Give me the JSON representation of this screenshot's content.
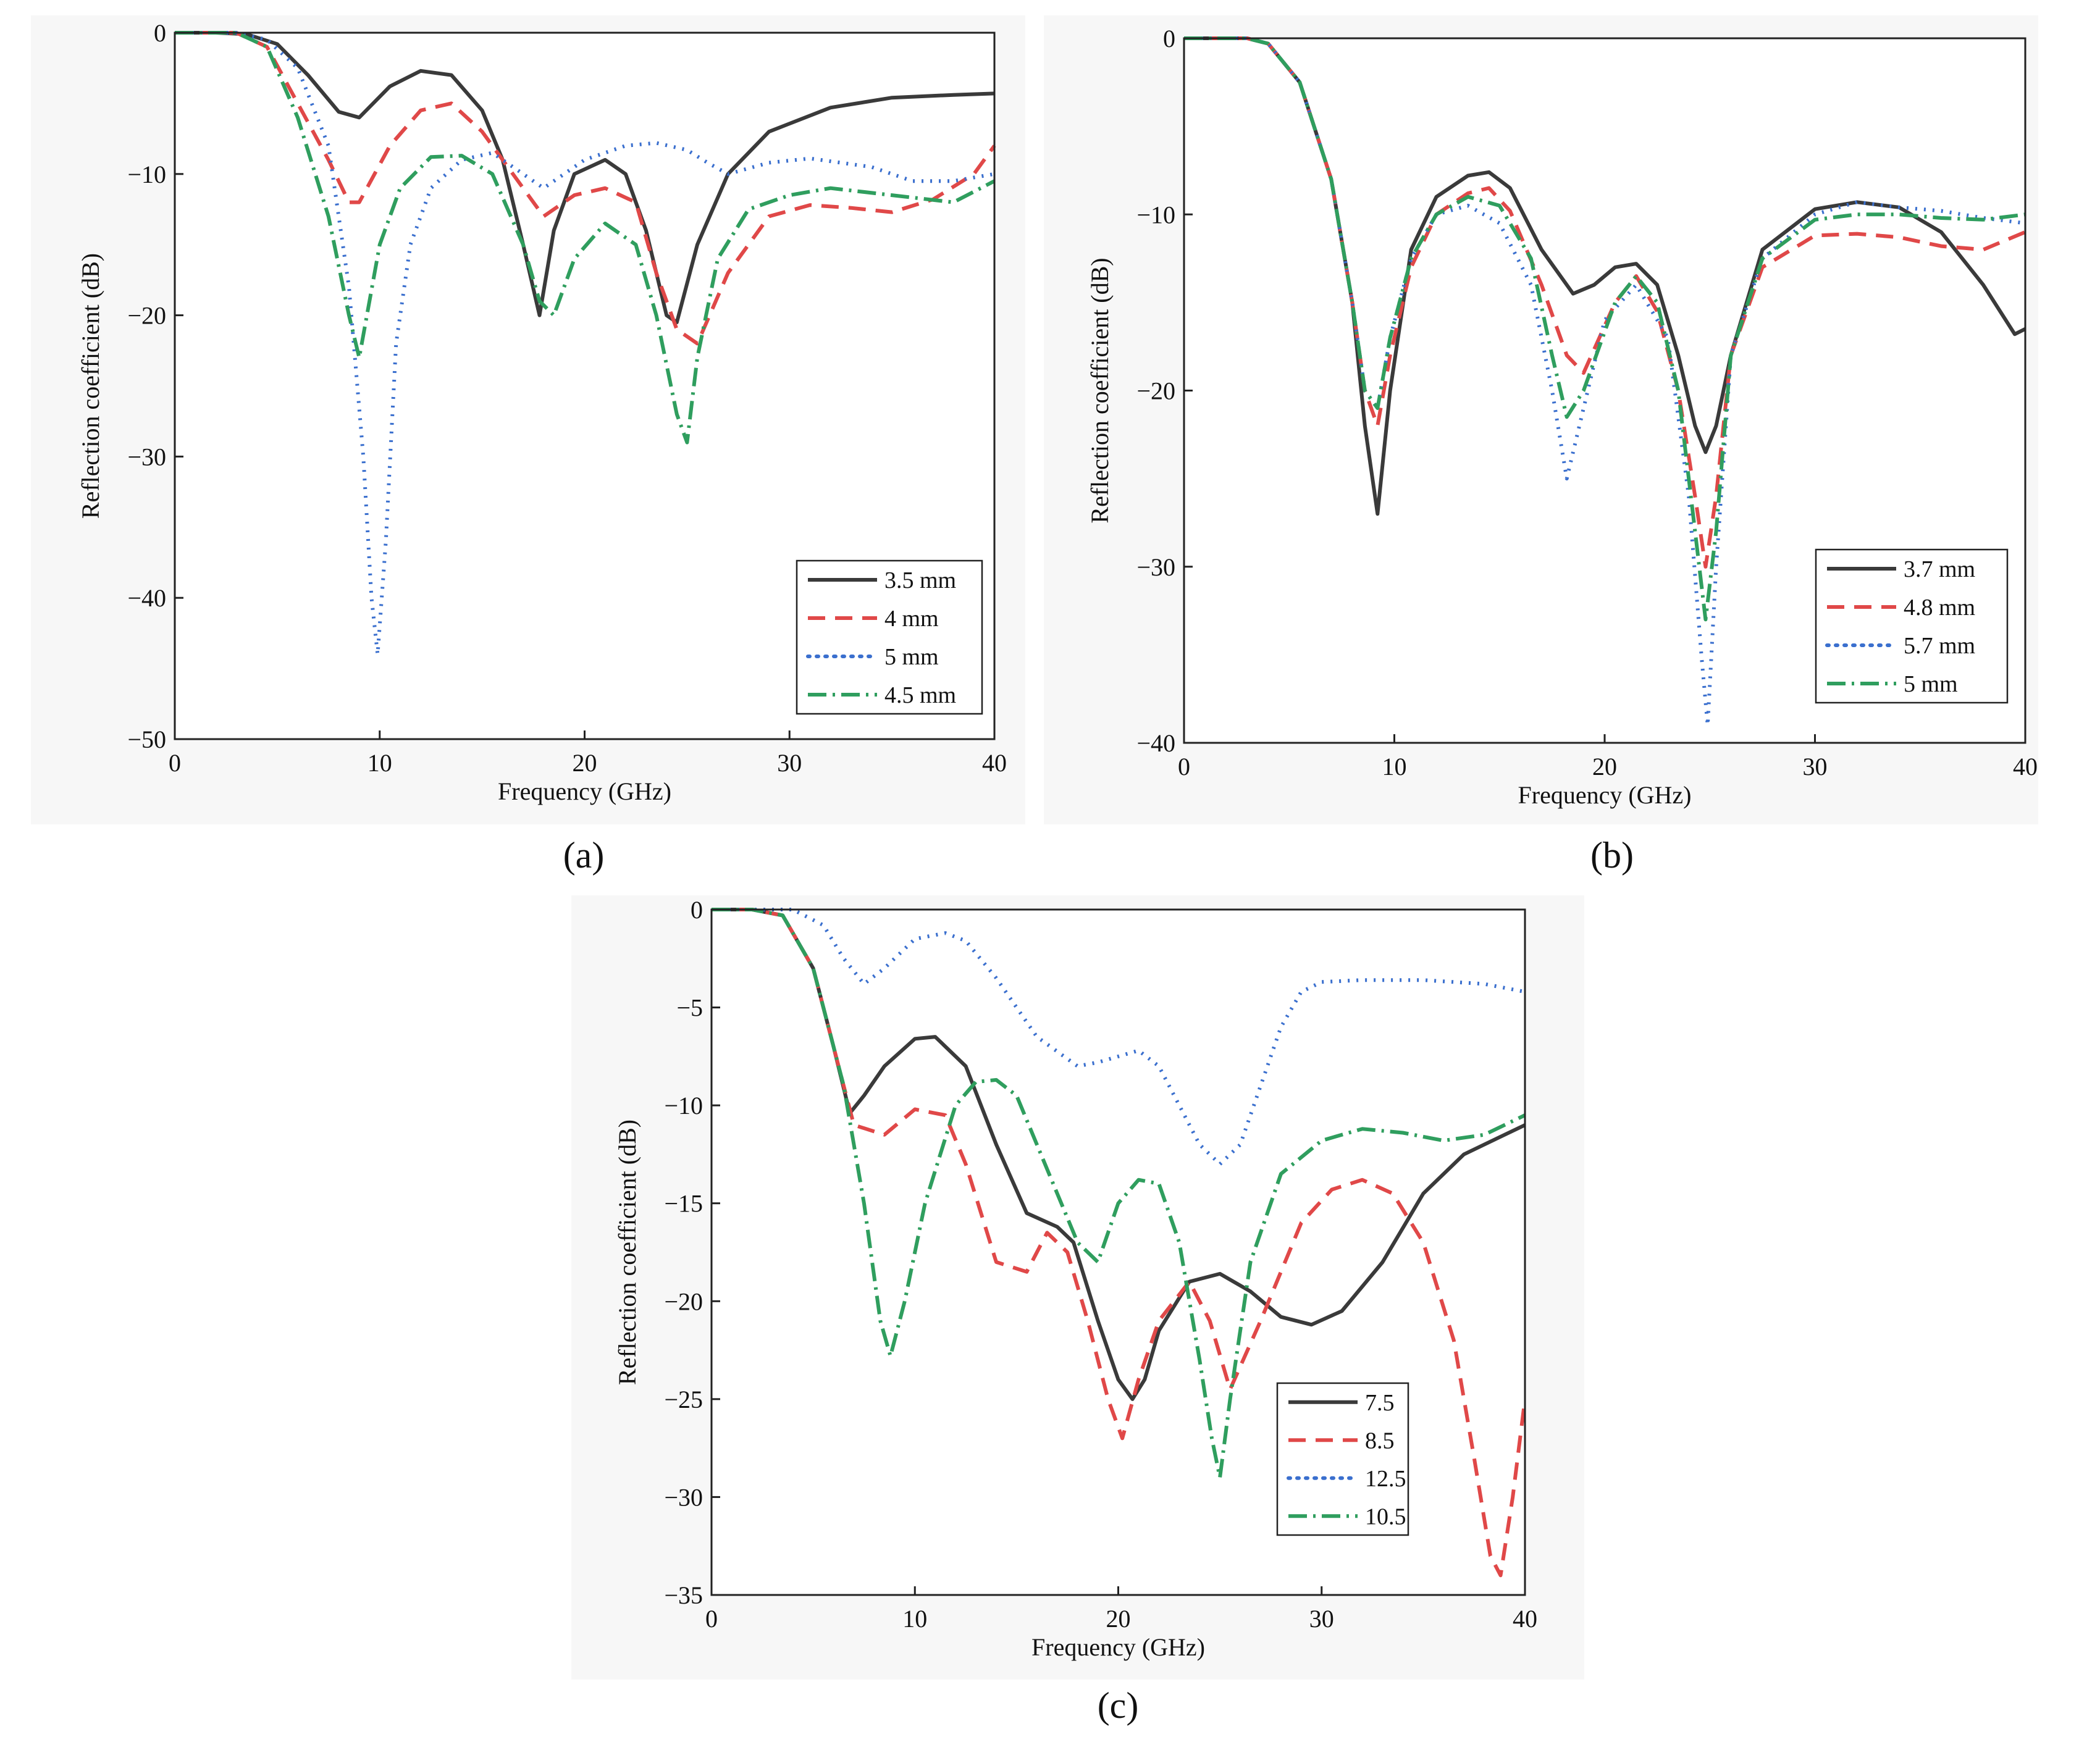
{
  "chart_data": [
    {
      "id": "a",
      "panel_label": "(a)",
      "type": "line",
      "xlabel": "Frequency (GHz)",
      "ylabel": "Reflection coefficient (dB)",
      "xlim": [
        0,
        40
      ],
      "ylim": [
        -50,
        0
      ],
      "xticks": [
        0,
        10,
        20,
        30,
        40
      ],
      "yticks": [
        0,
        -10,
        -20,
        -30,
        -40,
        -50
      ],
      "legend_position": "bottom-right",
      "series": [
        {
          "name": "3.5 mm",
          "color": "#3a3a3a",
          "dash": "solid",
          "x": [
            0,
            2,
            3.5,
            5,
            6.5,
            8,
            9,
            10.5,
            12,
            13.5,
            15,
            16,
            17,
            17.8,
            18.5,
            19.5,
            21,
            22,
            23,
            24,
            24.5,
            25.5,
            27,
            29,
            32,
            35,
            38,
            40
          ],
          "y": [
            0,
            0,
            -0.1,
            -0.8,
            -3,
            -5.6,
            -6,
            -3.8,
            -2.7,
            -3,
            -5.5,
            -9,
            -15,
            -20,
            -14,
            -10,
            -9,
            -10,
            -14,
            -20,
            -20.5,
            -15,
            -10,
            -7,
            -5.3,
            -4.6,
            -4.4,
            -4.3
          ]
        },
        {
          "name": "4 mm",
          "color": "#e04848",
          "dash": "28,16",
          "x": [
            0,
            3,
            4.5,
            6,
            7.5,
            8.5,
            9,
            10.5,
            12,
            13.5,
            15,
            16.5,
            18,
            19.5,
            21,
            22.5,
            23.5,
            24.5,
            25.5,
            27,
            29,
            31,
            33,
            35,
            37,
            39,
            40
          ],
          "y": [
            0,
            0,
            -1,
            -5,
            -9,
            -12,
            -12,
            -8,
            -5.5,
            -5,
            -7,
            -10,
            -13,
            -11.5,
            -11,
            -12,
            -17,
            -21,
            -22,
            -17,
            -13,
            -12.2,
            -12.4,
            -12.7,
            -11.8,
            -10,
            -8
          ]
        },
        {
          "name": "5 mm",
          "color": "#3a6fce",
          "dash": "3,11",
          "x": [
            0,
            3,
            4.5,
            6,
            7.5,
            8.5,
            9.2,
            9.6,
            9.9,
            10.3,
            10.8,
            11.5,
            12.5,
            14,
            15.5,
            17,
            18,
            20,
            22,
            23.5,
            25,
            26,
            27,
            29,
            31,
            34,
            36,
            38,
            40
          ],
          "y": [
            0,
            0,
            -0.5,
            -2.5,
            -8,
            -18,
            -30,
            -40,
            -44,
            -36,
            -22,
            -15,
            -11,
            -9,
            -8.5,
            -10,
            -11,
            -9,
            -8,
            -7.8,
            -8.3,
            -9.2,
            -10,
            -9.2,
            -8.9,
            -9.5,
            -10.5,
            -10.5,
            -10
          ]
        },
        {
          "name": "4.5 mm",
          "color": "#2f9e5e",
          "dash": "30,10,4,10",
          "x": [
            0,
            3,
            4.5,
            6,
            7.5,
            8.5,
            9,
            10,
            11,
            12.5,
            14,
            15.5,
            17,
            17.8,
            18.5,
            19.5,
            21,
            22.5,
            23.5,
            24.5,
            25,
            25.5,
            26.5,
            28,
            30,
            32,
            35,
            38,
            40
          ],
          "y": [
            0,
            0,
            -1,
            -6,
            -13,
            -20,
            -23,
            -15,
            -11,
            -8.8,
            -8.7,
            -10,
            -15,
            -19,
            -20,
            -16,
            -13.5,
            -15,
            -20,
            -27,
            -29,
            -23,
            -16,
            -12.5,
            -11.5,
            -11,
            -11.5,
            -12,
            -10.5
          ]
        }
      ]
    },
    {
      "id": "b",
      "panel_label": "(b)",
      "type": "line",
      "xlabel": "Frequency (GHz)",
      "ylabel": "Reflection coefficient (dB)",
      "xlim": [
        0,
        40
      ],
      "ylim": [
        -40,
        0
      ],
      "xticks": [
        0,
        10,
        20,
        30,
        40
      ],
      "yticks": [
        0,
        -10,
        -20,
        -30,
        -40
      ],
      "legend_position": "bottom-right",
      "series": [
        {
          "name": "3.7 mm",
          "color": "#3a3a3a",
          "dash": "solid",
          "x": [
            0,
            3,
            4,
            5.5,
            7,
            8,
            8.6,
            9.2,
            9.8,
            10.8,
            12,
            13.5,
            14.5,
            15.5,
            17,
            18.5,
            19.5,
            20.5,
            21.5,
            22.5,
            23.5,
            24.3,
            24.8,
            25.3,
            26,
            27.5,
            30,
            32,
            34,
            36,
            38,
            39.5,
            40
          ],
          "y": [
            0,
            0,
            -0.3,
            -2.5,
            -8,
            -15,
            -22,
            -27,
            -20,
            -12,
            -9,
            -7.8,
            -7.6,
            -8.5,
            -12,
            -14.5,
            -14,
            -13,
            -12.8,
            -14,
            -18,
            -22,
            -23.5,
            -22,
            -18,
            -12,
            -9.7,
            -9.3,
            -9.6,
            -11,
            -14,
            -16.8,
            -16.5
          ]
        },
        {
          "name": "4.8 mm",
          "color": "#e04848",
          "dash": "28,16",
          "x": [
            0,
            3,
            4,
            5.5,
            7,
            8,
            8.6,
            9.2,
            9.8,
            10.8,
            12,
            13.5,
            14.5,
            15.5,
            17,
            18.2,
            19,
            20.5,
            21.5,
            22.5,
            23.5,
            24.3,
            24.8,
            25.3,
            26,
            27.5,
            30,
            32,
            34,
            36,
            38,
            40
          ],
          "y": [
            0,
            0,
            -0.3,
            -2.5,
            -8,
            -15,
            -20,
            -22,
            -18,
            -13,
            -10,
            -8.8,
            -8.5,
            -9.8,
            -14,
            -18,
            -19,
            -15,
            -13.5,
            -15.5,
            -20,
            -26,
            -30,
            -26,
            -18,
            -13,
            -11.2,
            -11.1,
            -11.3,
            -11.8,
            -12,
            -11
          ]
        },
        {
          "name": "5.7 mm",
          "color": "#3a6fce",
          "dash": "3,11",
          "x": [
            0,
            3,
            4,
            5.5,
            7,
            8,
            8.6,
            9.2,
            9.8,
            10.8,
            12,
            13.5,
            15,
            16.5,
            17.5,
            18.2,
            18.8,
            20,
            21.5,
            23,
            24,
            24.6,
            24.9,
            25.3,
            26,
            27.5,
            30,
            32,
            34,
            36,
            38,
            40
          ],
          "y": [
            0,
            0,
            -0.3,
            -2.5,
            -8,
            -15,
            -20,
            -21,
            -17,
            -12.5,
            -10,
            -9.5,
            -10.5,
            -14,
            -20,
            -25,
            -22,
            -16,
            -14,
            -17,
            -26,
            -35,
            -39,
            -30,
            -18,
            -12.5,
            -10,
            -9.3,
            -9.6,
            -9.8,
            -10.2,
            -10.5
          ]
        },
        {
          "name": "5 mm",
          "color": "#2f9e5e",
          "dash": "30,10,4,10",
          "x": [
            0,
            3,
            4,
            5.5,
            7,
            8,
            8.6,
            9.2,
            9.8,
            10.8,
            12,
            13.5,
            15,
            16.5,
            17.5,
            18.2,
            19,
            20.5,
            21.5,
            22.5,
            23.5,
            24.3,
            24.8,
            25.3,
            26,
            27.5,
            30,
            32,
            34,
            36,
            38,
            40
          ],
          "y": [
            0,
            0,
            -0.3,
            -2.5,
            -8,
            -15,
            -20,
            -21,
            -17,
            -12.5,
            -10,
            -9,
            -9.5,
            -12.5,
            -18,
            -21.5,
            -20,
            -15,
            -13.5,
            -15,
            -20,
            -28,
            -33,
            -28,
            -18,
            -12.5,
            -10.3,
            -10,
            -10,
            -10.2,
            -10.3,
            -10
          ]
        }
      ]
    },
    {
      "id": "c",
      "panel_label": "(c)",
      "type": "line",
      "xlabel": "Frequency (GHz)",
      "ylabel": "Reflection coefficient (dB)",
      "xlim": [
        0,
        40
      ],
      "ylim": [
        -35,
        0
      ],
      "xticks": [
        0,
        10,
        20,
        30,
        40
      ],
      "yticks": [
        0,
        -5,
        -10,
        -15,
        -20,
        -25,
        -30,
        -35
      ],
      "legend_position": "bottom-right",
      "series": [
        {
          "name": "7.5",
          "color": "#3a3a3a",
          "dash": "solid",
          "x": [
            0,
            2,
            3.5,
            5,
            6,
            6.8,
            7.5,
            8.5,
            10,
            11,
            12.5,
            14,
            15.5,
            17,
            17.8,
            19,
            20,
            20.7,
            21.3,
            22,
            23.5,
            25,
            26.5,
            28,
            29.5,
            31,
            33,
            35,
            37,
            39,
            40
          ],
          "y": [
            0,
            0,
            -0.3,
            -3,
            -7,
            -10.4,
            -9.5,
            -8,
            -6.6,
            -6.5,
            -8,
            -12,
            -15.5,
            -16.2,
            -17,
            -21,
            -24,
            -25,
            -24,
            -21.5,
            -19,
            -18.6,
            -19.5,
            -20.8,
            -21.2,
            -20.5,
            -18,
            -14.5,
            -12.5,
            -11.5,
            -11
          ]
        },
        {
          "name": "8.5",
          "color": "#e04848",
          "dash": "28,16",
          "x": [
            0,
            2,
            3.5,
            5,
            6,
            7,
            8.5,
            10,
            11.5,
            12.5,
            14,
            15.5,
            16.5,
            17.5,
            18.5,
            19.5,
            20.2,
            21,
            22,
            23.5,
            24.5,
            25.5,
            27,
            29,
            30.5,
            32,
            33.5,
            35,
            36.5,
            37.5,
            38.3,
            38.8,
            39.4,
            40
          ],
          "y": [
            0,
            0,
            -0.3,
            -3,
            -7,
            -11,
            -11.5,
            -10.2,
            -10.5,
            -13,
            -18,
            -18.5,
            -16.5,
            -17.5,
            -21,
            -25,
            -27,
            -24,
            -21,
            -19,
            -21,
            -24.5,
            -21,
            -16,
            -14.3,
            -13.8,
            -14.5,
            -17,
            -22,
            -28,
            -33,
            -34,
            -30,
            -25
          ]
        },
        {
          "name": "12.5",
          "color": "#3a6fce",
          "dash": "3,11",
          "x": [
            0,
            2,
            4,
            5.5,
            6.5,
            7.5,
            8.5,
            10,
            11.5,
            12.5,
            14,
            16,
            18,
            19,
            20,
            21,
            22,
            23,
            24,
            25,
            26,
            27,
            28,
            29,
            30,
            32,
            35,
            38,
            40
          ],
          "y": [
            0,
            0,
            0,
            -0.8,
            -2.5,
            -3.8,
            -3,
            -1.5,
            -1.2,
            -1.6,
            -3.5,
            -6.5,
            -8,
            -7.8,
            -7.5,
            -7.2,
            -8,
            -10,
            -12,
            -13,
            -12,
            -9,
            -6,
            -4.2,
            -3.7,
            -3.6,
            -3.6,
            -3.8,
            -4.2
          ]
        },
        {
          "name": "10.5",
          "color": "#2f9e5e",
          "dash": "30,10,4,10",
          "x": [
            0,
            2,
            3.5,
            5,
            6.5,
            7.5,
            8.3,
            8.8,
            9.5,
            10.5,
            12,
            13,
            14,
            15,
            16,
            17,
            18,
            19,
            20,
            21,
            22,
            23,
            24,
            24.6,
            25,
            25.5,
            26.5,
            28,
            30,
            32,
            34,
            36,
            38,
            40
          ],
          "y": [
            0,
            0,
            -0.3,
            -3,
            -9,
            -15,
            -21,
            -22.8,
            -20,
            -15,
            -10,
            -8.8,
            -8.7,
            -9.5,
            -12,
            -14.5,
            -17,
            -18,
            -15,
            -13.8,
            -14,
            -17,
            -23,
            -27,
            -29,
            -25,
            -18,
            -13.5,
            -11.8,
            -11.2,
            -11.4,
            -11.8,
            -11.5,
            -10.5
          ]
        }
      ]
    }
  ]
}
